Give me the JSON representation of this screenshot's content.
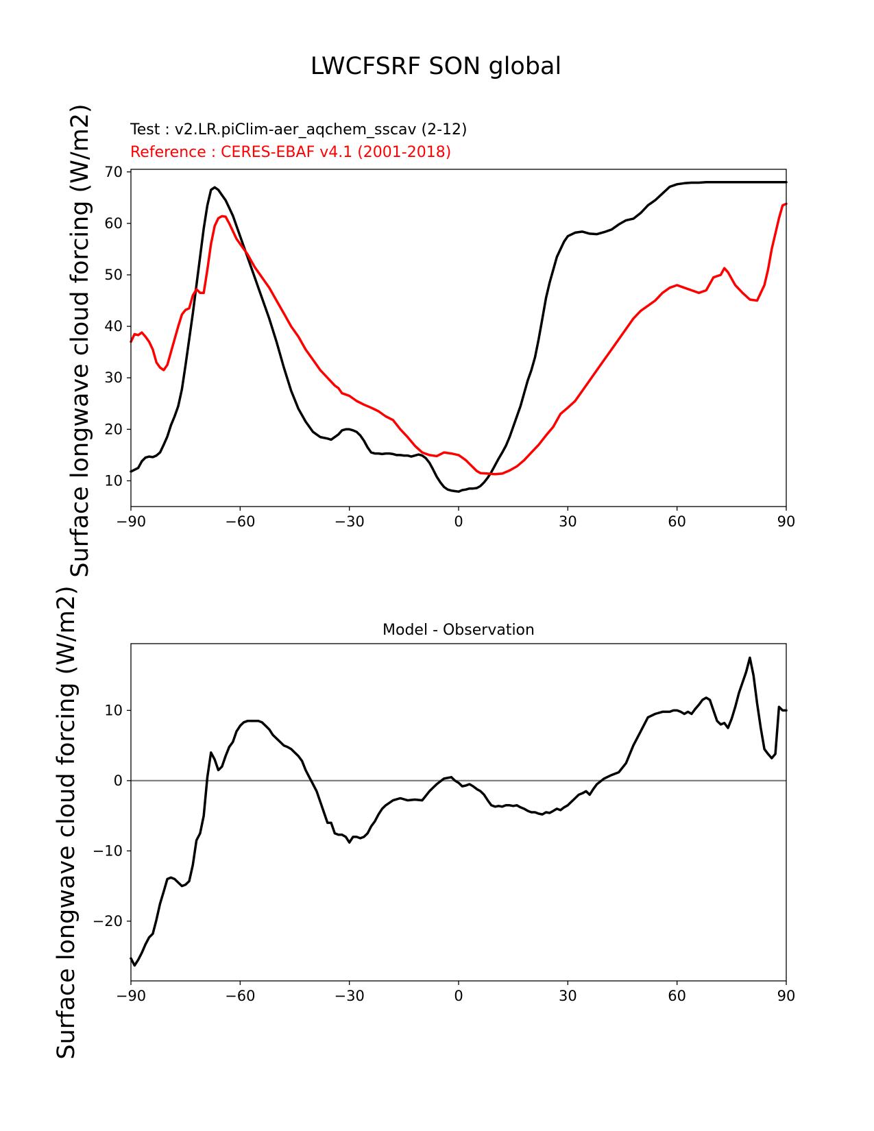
{
  "figure_title": "LWCFSRF SON global",
  "colors": {
    "test": "#000000",
    "reference": "#ff0000",
    "zero_line": "#808080",
    "axes": "#000000"
  },
  "chart_data": [
    {
      "type": "line",
      "title_test": "Test : v2.LR.piClim-aer_aqchem_sscav (2-12)",
      "title_reference": "Reference : CERES-EBAF v4.1 (2001-2018)",
      "ylabel": "Surface longwave cloud forcing (W/m2)",
      "xlabel": "",
      "xlim": [
        -90,
        90
      ],
      "ylim": [
        5,
        70.5
      ],
      "xticks": [
        -90,
        -60,
        -30,
        0,
        30,
        60,
        90
      ],
      "xtick_labels": [
        "−90",
        "−60",
        "−30",
        "0",
        "30",
        "60",
        "90"
      ],
      "yticks": [
        10,
        20,
        30,
        40,
        50,
        60,
        70
      ],
      "ytick_labels": [
        "10",
        "20",
        "30",
        "40",
        "50",
        "60",
        "70"
      ],
      "series": [
        {
          "name": "Test",
          "color": "#000000",
          "x": [
            -90,
            -88,
            -87,
            -86,
            -85,
            -84,
            -83,
            -82,
            -81,
            -80,
            -79,
            -78,
            -77,
            -76,
            -75,
            -74,
            -73,
            -72,
            -71,
            -70,
            -69,
            -68,
            -67,
            -66,
            -65,
            -64,
            -63,
            -62,
            -61,
            -60,
            -59,
            -58,
            -57,
            -56,
            -55,
            -54,
            -52,
            -50,
            -48,
            -46,
            -44,
            -42,
            -40,
            -38,
            -36,
            -35,
            -34,
            -33,
            -32,
            -31,
            -30,
            -29,
            -28,
            -27,
            -26,
            -25,
            -24,
            -23,
            -22,
            -21,
            -20,
            -19,
            -18,
            -17,
            -16,
            -15,
            -14,
            -13,
            -12,
            -11,
            -10,
            -9,
            -8,
            -7,
            -6,
            -5,
            -4,
            -3,
            -2,
            -1,
            0,
            1,
            2,
            3,
            4,
            5,
            6,
            7,
            8,
            9,
            10,
            11,
            12,
            13,
            14,
            15,
            16,
            17,
            18,
            19,
            20,
            21,
            22,
            23,
            24,
            25,
            26,
            27,
            28,
            29,
            30,
            32,
            34,
            36,
            38,
            40,
            42,
            44,
            46,
            48,
            50,
            52,
            54,
            56,
            58,
            60,
            62,
            64,
            66,
            68,
            69,
            70,
            72,
            74,
            76,
            78,
            80,
            82,
            84,
            86,
            88,
            90
          ],
          "values": [
            11.8,
            12.5,
            13.8,
            14.5,
            14.7,
            14.6,
            14.9,
            15.5,
            17.0,
            18.6,
            20.8,
            22.5,
            24.5,
            27.8,
            32.5,
            37.5,
            42.5,
            48.0,
            53.5,
            59.0,
            63.5,
            66.5,
            67.0,
            66.5,
            65.5,
            64.5,
            63.0,
            61.5,
            59.5,
            57.5,
            55.5,
            53.5,
            51.5,
            49.5,
            47.5,
            45.5,
            41.5,
            37.0,
            32.0,
            27.5,
            24.0,
            21.5,
            19.5,
            18.5,
            18.2,
            18.0,
            18.5,
            19.0,
            19.8,
            20.0,
            20.0,
            19.8,
            19.5,
            18.8,
            17.8,
            16.5,
            15.5,
            15.3,
            15.3,
            15.2,
            15.3,
            15.3,
            15.2,
            15.0,
            15.0,
            14.9,
            14.9,
            14.7,
            14.9,
            15.1,
            14.9,
            14.4,
            13.5,
            12.2,
            10.8,
            9.7,
            8.8,
            8.3,
            8.1,
            8.0,
            7.9,
            8.2,
            8.3,
            8.5,
            8.5,
            8.6,
            9.0,
            9.7,
            10.6,
            11.7,
            13.0,
            14.3,
            15.5,
            16.8,
            18.5,
            20.5,
            22.5,
            24.5,
            27.0,
            29.5,
            31.5,
            34.0,
            37.5,
            41.5,
            45.5,
            48.5,
            51.0,
            53.5,
            55.0,
            56.5,
            57.5,
            58.2,
            58.4,
            58.0,
            57.9,
            58.3,
            58.8,
            59.8,
            60.6,
            60.9,
            62.0,
            63.5,
            64.5,
            65.8,
            67.1,
            67.6,
            67.8,
            67.9,
            67.9,
            68.0,
            68.0,
            68.0,
            68.0,
            68.0,
            68.0,
            68.0,
            68.0,
            68.0,
            68.0,
            68.0,
            68.0,
            68.0
          ]
        },
        {
          "name": "Reference",
          "color": "#ff0000",
          "x": [
            -90,
            -89,
            -88,
            -87,
            -86,
            -85,
            -84,
            -83,
            -82,
            -81,
            -80,
            -79,
            -78,
            -77,
            -76,
            -75,
            -74,
            -73,
            -72,
            -71,
            -70,
            -69,
            -68,
            -67,
            -66,
            -65,
            -64,
            -63,
            -62,
            -61,
            -60,
            -58,
            -56,
            -54,
            -52,
            -50,
            -48,
            -46,
            -44,
            -42,
            -40,
            -38,
            -36,
            -34,
            -33,
            -32,
            -30,
            -28,
            -26,
            -24,
            -22,
            -20,
            -18,
            -16,
            -14,
            -12,
            -10,
            -8,
            -6,
            -4,
            -2,
            0,
            1,
            2,
            3,
            4,
            5,
            6,
            8,
            10,
            12,
            14,
            16,
            18,
            20,
            22,
            24,
            26,
            28,
            30,
            32,
            34,
            36,
            38,
            40,
            42,
            44,
            46,
            48,
            50,
            52,
            54,
            56,
            58,
            60,
            62,
            64,
            66,
            68,
            70,
            72,
            73,
            74,
            76,
            78,
            80,
            82,
            84,
            85,
            86,
            87,
            88,
            89,
            90
          ],
          "values": [
            37.0,
            38.5,
            38.3,
            38.8,
            38.0,
            37.0,
            35.5,
            33.0,
            32.0,
            31.5,
            32.5,
            35.0,
            37.5,
            40.0,
            42.3,
            43.2,
            43.5,
            46.0,
            47.2,
            46.5,
            46.5,
            51.0,
            56.0,
            59.5,
            61.0,
            61.4,
            61.3,
            60.0,
            58.5,
            57.0,
            56.0,
            54.0,
            51.5,
            49.5,
            47.5,
            45.0,
            42.5,
            40.0,
            38.0,
            35.5,
            33.5,
            31.5,
            30.0,
            28.5,
            28.0,
            27.0,
            26.5,
            25.5,
            24.8,
            24.2,
            23.5,
            22.5,
            21.8,
            20.0,
            18.5,
            16.8,
            15.5,
            15.0,
            14.8,
            15.5,
            15.3,
            15.0,
            14.5,
            14.0,
            13.3,
            12.6,
            11.9,
            11.5,
            11.4,
            11.3,
            11.4,
            12.0,
            12.8,
            14.0,
            15.5,
            17.0,
            18.8,
            20.5,
            23.0,
            24.2,
            25.5,
            27.5,
            29.5,
            31.5,
            33.5,
            35.5,
            37.5,
            39.5,
            41.5,
            43.0,
            44.0,
            45.0,
            46.5,
            47.5,
            48.0,
            47.5,
            47.0,
            46.5,
            47.0,
            49.5,
            50.0,
            51.3,
            50.5,
            48.0,
            46.5,
            45.2,
            45.0,
            48.0,
            51.0,
            55.0,
            58.0,
            61.0,
            63.5,
            63.8
          ]
        }
      ]
    },
    {
      "type": "line",
      "title": "Model - Observation",
      "ylabel": "Surface longwave cloud forcing (W/m2)",
      "xlabel": "",
      "xlim": [
        -90,
        90
      ],
      "ylim": [
        -28.5,
        19.5
      ],
      "xticks": [
        -90,
        -60,
        -30,
        0,
        30,
        60,
        90
      ],
      "xtick_labels": [
        "−90",
        "−60",
        "−30",
        "0",
        "30",
        "60",
        "90"
      ],
      "yticks": [
        -20,
        -10,
        0,
        10
      ],
      "ytick_labels": [
        "−20",
        "−10",
        "0",
        "10"
      ],
      "zero_line": 0,
      "series": [
        {
          "name": "Model - Observation",
          "color": "#000000",
          "x": [
            -90,
            -89,
            -88,
            -87,
            -86,
            -85,
            -84,
            -83,
            -82,
            -81,
            -80,
            -79,
            -78,
            -77,
            -76,
            -75,
            -74,
            -73,
            -72,
            -71,
            -70,
            -69,
            -68,
            -67,
            -66,
            -65,
            -64,
            -63,
            -62,
            -61,
            -60,
            -59,
            -58,
            -57,
            -56,
            -55,
            -54,
            -53,
            -52,
            -51,
            -50,
            -49,
            -48,
            -47,
            -46,
            -45,
            -44,
            -43,
            -42,
            -41,
            -40,
            -39,
            -38,
            -37,
            -36,
            -35,
            -34,
            -33,
            -32,
            -31,
            -30,
            -29,
            -28,
            -27,
            -26,
            -25,
            -24,
            -23,
            -22,
            -21,
            -20,
            -18,
            -16,
            -14,
            -12,
            -10,
            -8,
            -6,
            -4,
            -2,
            -1,
            0,
            1,
            2,
            3,
            4,
            5,
            6,
            7,
            8,
            9,
            10,
            11,
            12,
            13,
            14,
            15,
            16,
            17,
            18,
            19,
            20,
            21,
            22,
            23,
            24,
            25,
            26,
            27,
            28,
            29,
            30,
            31,
            32,
            33,
            34,
            35,
            36,
            37,
            38,
            40,
            42,
            44,
            46,
            48,
            50,
            52,
            54,
            56,
            58,
            59,
            60,
            61,
            62,
            63,
            64,
            65,
            66,
            67,
            68,
            69,
            70,
            71,
            72,
            73,
            74,
            75,
            76,
            77,
            78,
            79,
            80,
            81,
            82,
            83,
            84,
            85,
            86,
            87,
            88,
            89,
            90
          ],
          "values": [
            -25.3,
            -26.3,
            -25.5,
            -24.5,
            -23.3,
            -22.3,
            -21.8,
            -19.8,
            -17.5,
            -15.8,
            -14.0,
            -13.8,
            -14.0,
            -14.5,
            -15.0,
            -14.8,
            -14.3,
            -12.0,
            -8.5,
            -7.5,
            -5.0,
            0.5,
            4.0,
            3.0,
            1.5,
            2.0,
            3.5,
            4.8,
            5.5,
            7.0,
            7.8,
            8.3,
            8.5,
            8.5,
            8.5,
            8.5,
            8.3,
            7.8,
            7.3,
            6.5,
            6.0,
            5.5,
            5.0,
            4.8,
            4.5,
            4.0,
            3.5,
            2.8,
            1.5,
            0.5,
            -0.5,
            -1.5,
            -3.0,
            -4.5,
            -6.0,
            -6.0,
            -7.5,
            -7.7,
            -7.7,
            -8.0,
            -8.8,
            -8.0,
            -8.0,
            -8.2,
            -8.0,
            -7.5,
            -6.5,
            -5.8,
            -4.8,
            -4.0,
            -3.5,
            -2.8,
            -2.5,
            -2.8,
            -2.7,
            -2.8,
            -1.5,
            -0.5,
            0.3,
            0.5,
            0.0,
            -0.3,
            -0.8,
            -0.7,
            -0.5,
            -0.8,
            -1.2,
            -1.5,
            -2.0,
            -2.8,
            -3.5,
            -3.7,
            -3.6,
            -3.7,
            -3.5,
            -3.5,
            -3.6,
            -3.5,
            -3.8,
            -4.0,
            -4.3,
            -4.5,
            -4.5,
            -4.7,
            -4.8,
            -4.5,
            -4.6,
            -4.3,
            -4.0,
            -4.2,
            -3.8,
            -3.5,
            -3.0,
            -2.5,
            -2.0,
            -1.8,
            -1.5,
            -2.0,
            -1.2,
            -0.5,
            0.3,
            0.8,
            1.2,
            2.5,
            5.0,
            7.0,
            9.0,
            9.5,
            9.8,
            9.8,
            10.0,
            10.0,
            9.8,
            9.5,
            9.8,
            9.5,
            10.2,
            10.8,
            11.5,
            11.8,
            11.5,
            10.0,
            8.5,
            8.0,
            8.2,
            7.5,
            8.8,
            10.5,
            12.5,
            14.0,
            15.5,
            17.5,
            15.0,
            11.0,
            7.5,
            4.5,
            3.8,
            3.2,
            3.8,
            10.5,
            10.0,
            10.0
          ]
        }
      ]
    }
  ]
}
